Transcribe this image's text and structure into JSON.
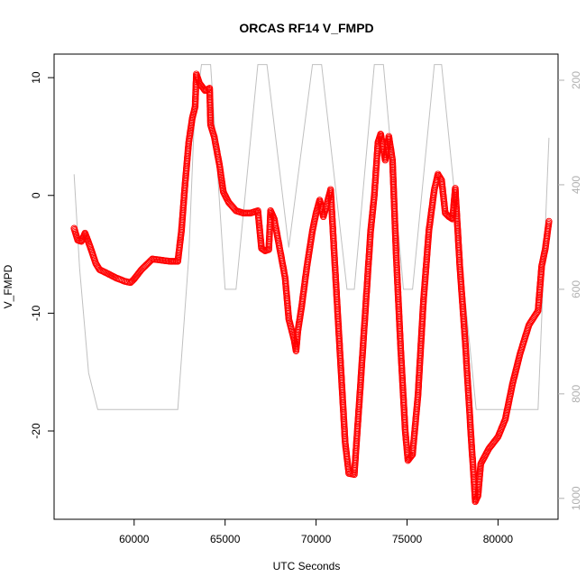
{
  "chart_data": {
    "type": "scatter",
    "title": "ORCAS RF14 V_FMPD",
    "xlabel": "UTC Seconds",
    "ylabel": "V_FMPD",
    "xlim": [
      55600,
      83300
    ],
    "ylim": [
      -27.5,
      12.0
    ],
    "x_ticks": [
      60000,
      65000,
      70000,
      75000,
      80000
    ],
    "y_ticks": [
      -20,
      -10,
      0,
      10
    ],
    "y2lim": [
      1040,
      150
    ],
    "y2_ticks": [
      200,
      400,
      600,
      800,
      1000
    ],
    "grid": false,
    "legend": "none",
    "series": [
      {
        "axis": "left",
        "color": "#ff0000",
        "marker": "open-circle",
        "points": [
          [
            56700,
            -2.8
          ],
          [
            56900,
            -3.8
          ],
          [
            57100,
            -3.9
          ],
          [
            57300,
            -3.2
          ],
          [
            57500,
            -4.0
          ],
          [
            57700,
            -4.9
          ],
          [
            57900,
            -5.8
          ],
          [
            58100,
            -6.3
          ],
          [
            58500,
            -6.6
          ],
          [
            59000,
            -7.0
          ],
          [
            59500,
            -7.3
          ],
          [
            59800,
            -7.4
          ],
          [
            60000,
            -7.1
          ],
          [
            60400,
            -6.3
          ],
          [
            61000,
            -5.4
          ],
          [
            61500,
            -5.5
          ],
          [
            62000,
            -5.6
          ],
          [
            62400,
            -5.6
          ],
          [
            62600,
            -3.0
          ],
          [
            62800,
            1.0
          ],
          [
            63000,
            4.5
          ],
          [
            63200,
            6.6
          ],
          [
            63350,
            7.5
          ],
          [
            63420,
            10.3
          ],
          [
            63600,
            9.5
          ],
          [
            63900,
            8.9
          ],
          [
            64150,
            9.1
          ],
          [
            64200,
            6.0
          ],
          [
            64400,
            5.0
          ],
          [
            64700,
            2.5
          ],
          [
            64900,
            0.3
          ],
          [
            65200,
            -0.6
          ],
          [
            65600,
            -1.3
          ],
          [
            66000,
            -1.5
          ],
          [
            66400,
            -1.5
          ],
          [
            66800,
            -1.3
          ],
          [
            67000,
            -4.5
          ],
          [
            67200,
            -4.7
          ],
          [
            67400,
            -4.6
          ],
          [
            67500,
            -1.3
          ],
          [
            67700,
            -2.0
          ],
          [
            68000,
            -4.5
          ],
          [
            68300,
            -7.0
          ],
          [
            68500,
            -10.5
          ],
          [
            68800,
            -12.3
          ],
          [
            68900,
            -13.2
          ],
          [
            69000,
            -11.5
          ],
          [
            69200,
            -9.5
          ],
          [
            69500,
            -6.0
          ],
          [
            69800,
            -3.0
          ],
          [
            70000,
            -1.5
          ],
          [
            70200,
            -0.4
          ],
          [
            70400,
            -1.8
          ],
          [
            70550,
            -1.0
          ],
          [
            70800,
            0.5
          ],
          [
            71000,
            -5.0
          ],
          [
            71300,
            -13.0
          ],
          [
            71600,
            -21.0
          ],
          [
            71800,
            -23.6
          ],
          [
            72100,
            -23.7
          ],
          [
            72400,
            -17.0
          ],
          [
            72700,
            -10.0
          ],
          [
            73000,
            -3.0
          ],
          [
            73200,
            0.0
          ],
          [
            73400,
            4.5
          ],
          [
            73550,
            5.2
          ],
          [
            73800,
            3.0
          ],
          [
            74000,
            5.0
          ],
          [
            74200,
            3.0
          ],
          [
            74400,
            -5.0
          ],
          [
            74650,
            -13.0
          ],
          [
            74900,
            -20.0
          ],
          [
            75050,
            -22.5
          ],
          [
            75300,
            -22.0
          ],
          [
            75600,
            -17.0
          ],
          [
            75900,
            -9.0
          ],
          [
            76200,
            -3.0
          ],
          [
            76500,
            0.5
          ],
          [
            76700,
            1.8
          ],
          [
            76900,
            1.3
          ],
          [
            77100,
            -1.5
          ],
          [
            77300,
            -1.8
          ],
          [
            77500,
            -2.0
          ],
          [
            77650,
            0.6
          ],
          [
            77900,
            -6.0
          ],
          [
            78200,
            -12.5
          ],
          [
            78500,
            -20.0
          ],
          [
            78750,
            -26.0
          ],
          [
            78900,
            -25.5
          ],
          [
            79050,
            -22.8
          ],
          [
            79500,
            -21.5
          ],
          [
            80000,
            -20.5
          ],
          [
            80400,
            -19.0
          ],
          [
            80800,
            -16.0
          ],
          [
            81200,
            -13.5
          ],
          [
            81700,
            -11.0
          ],
          [
            82200,
            -9.8
          ],
          [
            82400,
            -6.0
          ],
          [
            82600,
            -4.5
          ],
          [
            82800,
            -2.2
          ]
        ]
      },
      {
        "axis": "right",
        "color": "#c0c0c0",
        "line": true,
        "points": [
          [
            56700,
            380
          ],
          [
            57000,
            560
          ],
          [
            57500,
            760
          ],
          [
            58000,
            830
          ],
          [
            62400,
            830
          ],
          [
            63000,
            540
          ],
          [
            63300,
            280
          ],
          [
            63700,
            170
          ],
          [
            64200,
            170
          ],
          [
            65000,
            600
          ],
          [
            65600,
            600
          ],
          [
            66800,
            170
          ],
          [
            67300,
            170
          ],
          [
            68500,
            520
          ],
          [
            69800,
            170
          ],
          [
            70300,
            170
          ],
          [
            71700,
            600
          ],
          [
            72100,
            600
          ],
          [
            73200,
            170
          ],
          [
            73700,
            170
          ],
          [
            74800,
            600
          ],
          [
            75300,
            600
          ],
          [
            76500,
            170
          ],
          [
            76900,
            170
          ],
          [
            78800,
            830
          ],
          [
            82200,
            830
          ],
          [
            82800,
            310
          ]
        ]
      }
    ]
  }
}
